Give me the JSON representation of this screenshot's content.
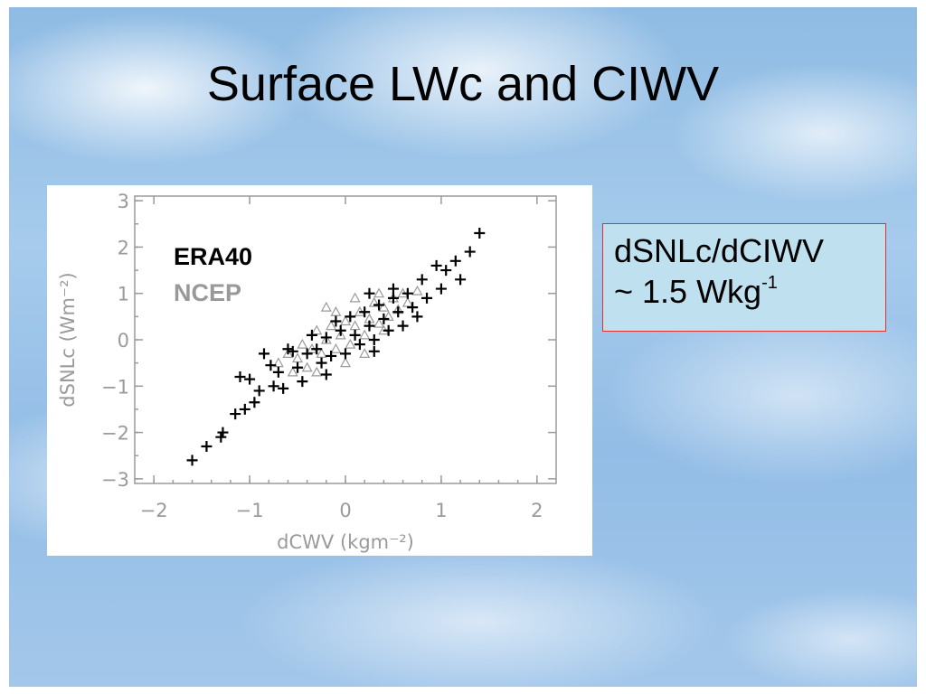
{
  "slide": {
    "title": "Surface LWc and CIWV",
    "callout": {
      "line1": "dSNLc/dCIWV",
      "line2_prefix": "~ 1.5 Wkg",
      "line2_exponent": "-1"
    },
    "colors": {
      "sky": "#9cc4ea",
      "callout_fill": "#bfe0ee",
      "callout_border": "#e03030",
      "axis_gray": "#9a9a9a",
      "ncep_gray": "#999999",
      "era40_black": "#000000"
    }
  },
  "chart_data": {
    "type": "scatter",
    "xlabel": "dCWV (kgm⁻²)",
    "ylabel": "dSNLc (Wm⁻²)",
    "xlim": [
      -2.2,
      2.2
    ],
    "ylim": [
      -3.1,
      3.1
    ],
    "xticks": [
      "−2",
      "−1",
      "0",
      "1",
      "2"
    ],
    "xtick_values": [
      -2,
      -1,
      0,
      1,
      2
    ],
    "yticks": [
      "−3",
      "−2",
      "−1",
      "0",
      "1",
      "2",
      "3"
    ],
    "ytick_values": [
      -3,
      -2,
      -1,
      0,
      1,
      2,
      3
    ],
    "legend": "top-left",
    "grid": false,
    "series": [
      {
        "name": "ERA40",
        "marker": "plus",
        "color": "#000000",
        "points": [
          [
            -1.6,
            -2.6
          ],
          [
            -1.45,
            -2.3
          ],
          [
            -1.28,
            -2.0
          ],
          [
            -1.3,
            -2.1
          ],
          [
            -1.15,
            -1.6
          ],
          [
            -1.05,
            -1.5
          ],
          [
            -1.1,
            -0.8
          ],
          [
            -1.0,
            -0.85
          ],
          [
            -0.95,
            -1.35
          ],
          [
            -0.9,
            -1.1
          ],
          [
            -0.78,
            -0.55
          ],
          [
            -0.7,
            -0.7
          ],
          [
            -0.75,
            -1.0
          ],
          [
            -0.65,
            -1.05
          ],
          [
            -0.55,
            -0.25
          ],
          [
            -0.5,
            -0.6
          ],
          [
            -0.45,
            -0.9
          ],
          [
            -0.4,
            -0.3
          ],
          [
            -0.35,
            0.1
          ],
          [
            -0.3,
            -0.2
          ],
          [
            -0.25,
            -0.5
          ],
          [
            -0.2,
            0.05
          ],
          [
            -0.15,
            -0.35
          ],
          [
            -0.1,
            0.4
          ],
          [
            -0.05,
            0.2
          ],
          [
            0.0,
            -0.3
          ],
          [
            0.05,
            0.5
          ],
          [
            0.1,
            0.1
          ],
          [
            0.15,
            -0.1
          ],
          [
            0.2,
            0.6
          ],
          [
            0.25,
            0.3
          ],
          [
            0.3,
            0.0
          ],
          [
            0.35,
            0.75
          ],
          [
            0.4,
            0.45
          ],
          [
            0.45,
            0.2
          ],
          [
            0.5,
            0.9
          ],
          [
            0.55,
            0.6
          ],
          [
            0.6,
            0.3
          ],
          [
            0.65,
            1.0
          ],
          [
            0.7,
            0.7
          ],
          [
            0.75,
            0.5
          ],
          [
            0.8,
            1.3
          ],
          [
            0.85,
            0.9
          ],
          [
            0.95,
            1.6
          ],
          [
            1.0,
            1.1
          ],
          [
            1.05,
            1.5
          ],
          [
            1.15,
            1.7
          ],
          [
            1.2,
            1.3
          ],
          [
            1.3,
            1.9
          ],
          [
            1.4,
            2.3
          ],
          [
            -0.85,
            -0.3
          ],
          [
            -0.6,
            -0.2
          ],
          [
            0.25,
            1.0
          ],
          [
            0.5,
            1.1
          ],
          [
            0.3,
            -0.25
          ],
          [
            -0.2,
            -0.75
          ]
        ]
      },
      {
        "name": "NCEP",
        "marker": "triangle",
        "color": "#999999",
        "points": [
          [
            -0.7,
            -0.5
          ],
          [
            -0.6,
            -0.3
          ],
          [
            -0.5,
            -0.4
          ],
          [
            -0.45,
            -0.1
          ],
          [
            -0.4,
            -0.6
          ],
          [
            -0.35,
            -0.2
          ],
          [
            -0.3,
            0.2
          ],
          [
            -0.25,
            -0.3
          ],
          [
            -0.2,
            0.0
          ],
          [
            -0.15,
            0.3
          ],
          [
            -0.1,
            -0.2
          ],
          [
            -0.05,
            0.1
          ],
          [
            0.0,
            0.4
          ],
          [
            0.05,
            -0.1
          ],
          [
            0.1,
            0.3
          ],
          [
            0.15,
            0.6
          ],
          [
            0.2,
            0.1
          ],
          [
            0.25,
            0.45
          ],
          [
            0.3,
            0.8
          ],
          [
            0.35,
            0.35
          ],
          [
            0.4,
            0.7
          ],
          [
            0.45,
            0.5
          ],
          [
            0.5,
            0.9
          ],
          [
            0.55,
            0.65
          ],
          [
            0.6,
            1.0
          ],
          [
            0.65,
            0.8
          ],
          [
            0.75,
            1.05
          ],
          [
            -0.55,
            -0.7
          ],
          [
            -0.1,
            0.6
          ],
          [
            -0.2,
            0.7
          ],
          [
            0.1,
            0.9
          ],
          [
            0.2,
            -0.3
          ],
          [
            0.0,
            -0.5
          ],
          [
            -0.3,
            -0.7
          ],
          [
            0.4,
            0.2
          ],
          [
            0.35,
            1.0
          ]
        ]
      }
    ]
  }
}
